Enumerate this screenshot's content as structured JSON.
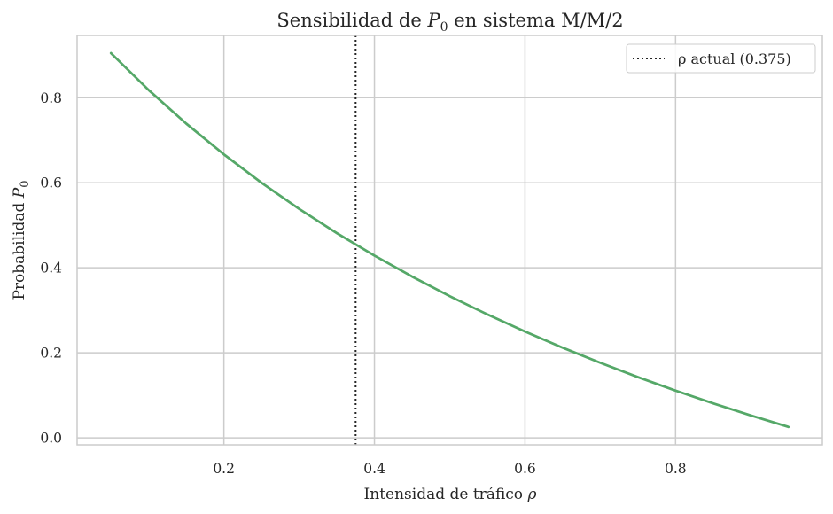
{
  "chart_data": {
    "type": "line",
    "title": {
      "prefix": "Sensibilidad de ",
      "symbol": "P",
      "subscript": "0",
      "suffix": " en sistema M/M/2"
    },
    "xlabel": {
      "text": "Intensidad de tráfico ",
      "symbol": "ρ"
    },
    "ylabel": {
      "text": "Probabilidad ",
      "symbol": "P",
      "subscript": "0"
    },
    "xlim": [
      0.005,
      0.995
    ],
    "ylim": [
      -0.0165,
      0.9465
    ],
    "xticks": [
      {
        "value": 0.2,
        "label": "0.2"
      },
      {
        "value": 0.4,
        "label": "0.4"
      },
      {
        "value": 0.6,
        "label": "0.6"
      },
      {
        "value": 0.8,
        "label": "0.8"
      }
    ],
    "yticks": [
      {
        "value": 0.0,
        "label": "0.0"
      },
      {
        "value": 0.2,
        "label": "0.2"
      },
      {
        "value": 0.4,
        "label": "0.4"
      },
      {
        "value": 0.6,
        "label": "0.6"
      },
      {
        "value": 0.8,
        "label": "0.8"
      }
    ],
    "grid": true,
    "series": [
      {
        "color": "#55a868",
        "x": [
          0.05,
          0.1,
          0.15,
          0.2,
          0.25,
          0.3,
          0.35,
          0.4,
          0.45,
          0.5,
          0.55,
          0.6,
          0.65,
          0.7,
          0.75,
          0.8,
          0.85,
          0.9,
          0.95
        ],
        "y": [
          0.9048,
          0.8182,
          0.7391,
          0.6667,
          0.6,
          0.5385,
          0.4815,
          0.4286,
          0.3793,
          0.3333,
          0.2903,
          0.25,
          0.2121,
          0.1765,
          0.1429,
          0.1111,
          0.0811,
          0.0526,
          0.0256
        ]
      }
    ],
    "reference_line": {
      "orientation": "vertical",
      "x": 0.375,
      "style": "dotted",
      "color": "#262626",
      "label": "ρ actual (0.375)"
    },
    "legend": {
      "position": "upper-right"
    }
  }
}
